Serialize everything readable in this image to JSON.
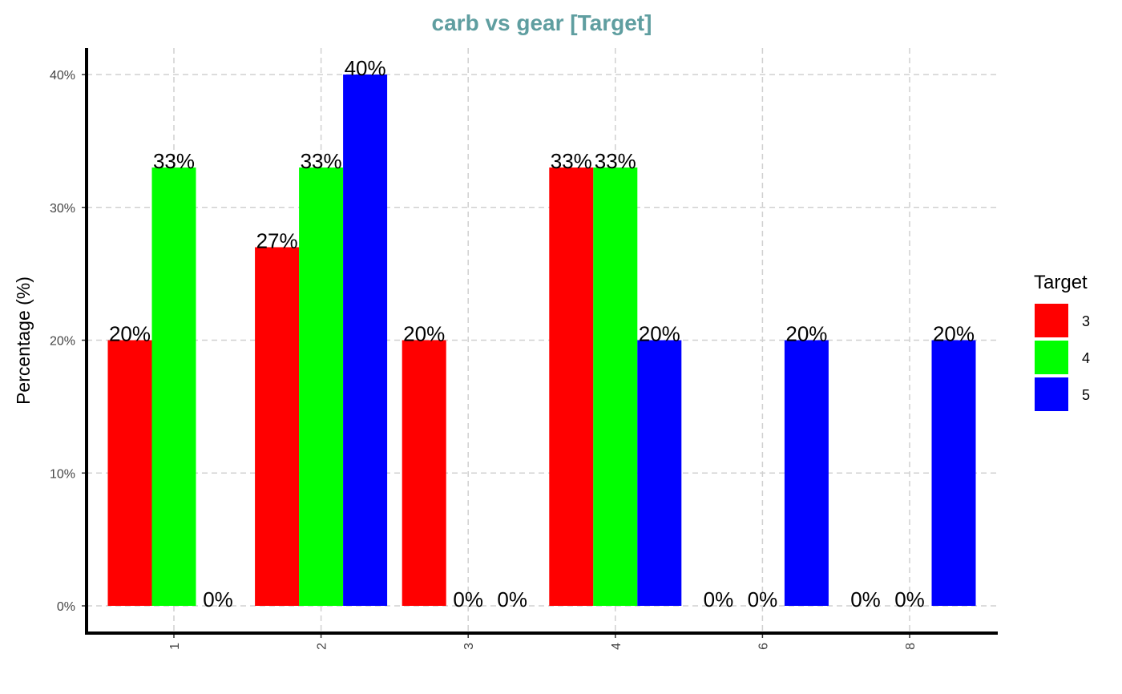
{
  "chart_data": {
    "type": "bar",
    "title": "carb vs gear [Target]",
    "xlabel": "",
    "ylabel": "Percentage (%)",
    "ylim": [
      0,
      42
    ],
    "yticks": [
      0,
      10,
      20,
      30,
      40
    ],
    "ytick_labels": [
      "0%",
      "10%",
      "20%",
      "30%",
      "40%"
    ],
    "categories": [
      "1",
      "2",
      "3",
      "4",
      "6",
      "8"
    ],
    "legend_title": "Target",
    "legend_position": "right",
    "grid": true,
    "series": [
      {
        "name": "3",
        "color": "#FF0000",
        "values": [
          20,
          27,
          20,
          33,
          0,
          0
        ],
        "labels": [
          "20%",
          "27%",
          "20%",
          "33%",
          "0%",
          "0%"
        ]
      },
      {
        "name": "4",
        "color": "#00FF00",
        "values": [
          33,
          33,
          0,
          33,
          0,
          0
        ],
        "labels": [
          "33%",
          "33%",
          "0%",
          "33%",
          "0%",
          "0%"
        ]
      },
      {
        "name": "5",
        "color": "#0000FF",
        "values": [
          0,
          40,
          0,
          20,
          20,
          20
        ],
        "labels": [
          "0%",
          "40%",
          "0%",
          "20%",
          "20%",
          "20%"
        ]
      }
    ],
    "title_color": "#5F9EA0"
  }
}
